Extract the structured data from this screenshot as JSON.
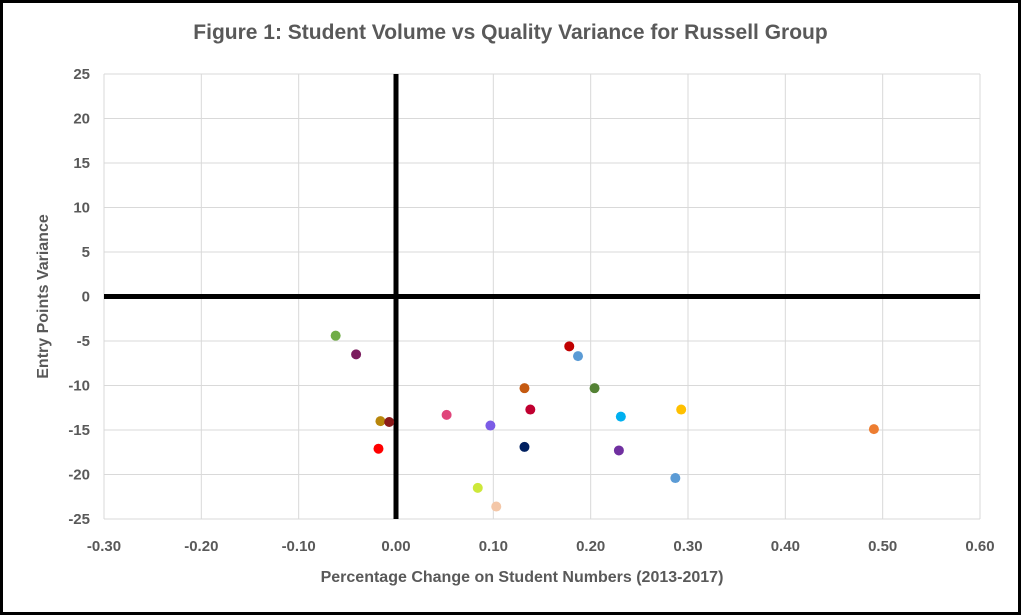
{
  "chart_data": {
    "type": "scatter",
    "title": "Figure 1: Student Volume vs Quality Variance for Russell Group",
    "xlabel": "Percentage Change on Student Numbers (2013-2017)",
    "ylabel": "Entry Points Variance",
    "xlim": [
      -0.3,
      0.6
    ],
    "ylim": [
      -25,
      25
    ],
    "x_ticks": [
      -0.3,
      -0.2,
      -0.1,
      0.0,
      0.1,
      0.2,
      0.3,
      0.4,
      0.5,
      0.6
    ],
    "x_tick_labels": [
      "-0.30",
      "-0.20",
      "-0.10",
      "0.00",
      "0.10",
      "0.20",
      "0.30",
      "0.40",
      "0.50",
      "0.60"
    ],
    "y_ticks": [
      25,
      20,
      15,
      10,
      5,
      0,
      -5,
      -10,
      -15,
      -20,
      -25
    ],
    "y_tick_labels": [
      "25",
      "20",
      "15",
      "10",
      "5",
      "0",
      "-5",
      "-10",
      "-15",
      "-20",
      "-25"
    ],
    "grid": true,
    "zero_lines": true,
    "points": [
      {
        "x": -0.062,
        "y": -4.4,
        "color": "#70ad47"
      },
      {
        "x": -0.041,
        "y": -6.5,
        "color": "#7b1c5e"
      },
      {
        "x": -0.016,
        "y": -14.0,
        "color": "#b8860b"
      },
      {
        "x": -0.007,
        "y": -14.1,
        "color": "#8b1a1a"
      },
      {
        "x": -0.018,
        "y": -17.1,
        "color": "#ff0000"
      },
      {
        "x": 0.052,
        "y": -13.3,
        "color": "#e0457b"
      },
      {
        "x": 0.097,
        "y": -14.5,
        "color": "#7b5ce6"
      },
      {
        "x": 0.084,
        "y": -21.5,
        "color": "#cde83a"
      },
      {
        "x": 0.103,
        "y": -23.6,
        "color": "#f4c7a8"
      },
      {
        "x": 0.132,
        "y": -10.3,
        "color": "#c55a11"
      },
      {
        "x": 0.138,
        "y": -12.7,
        "color": "#c00030"
      },
      {
        "x": 0.132,
        "y": -16.9,
        "color": "#002060"
      },
      {
        "x": 0.178,
        "y": -5.6,
        "color": "#c00000"
      },
      {
        "x": 0.187,
        "y": -6.7,
        "color": "#5b9bd5"
      },
      {
        "x": 0.204,
        "y": -10.3,
        "color": "#548235"
      },
      {
        "x": 0.231,
        "y": -13.5,
        "color": "#00b0f0"
      },
      {
        "x": 0.229,
        "y": -17.3,
        "color": "#7030a0"
      },
      {
        "x": 0.293,
        "y": -12.7,
        "color": "#ffc000"
      },
      {
        "x": 0.287,
        "y": -20.4,
        "color": "#5b9bd5"
      },
      {
        "x": 0.491,
        "y": -14.9,
        "color": "#ed7d31"
      }
    ]
  },
  "colors": {
    "text": "#595959",
    "grid": "#d9d9d9",
    "zero_line": "#000000",
    "border": "#000000"
  }
}
